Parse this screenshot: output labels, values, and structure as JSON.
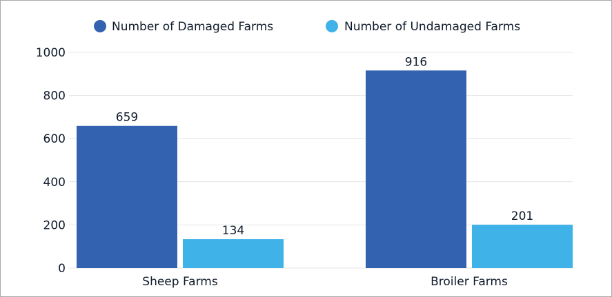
{
  "chart_data": {
    "type": "bar",
    "categories": [
      "Sheep Farms",
      "Broiler Farms"
    ],
    "series": [
      {
        "name": "Number of Damaged Farms",
        "values": [
          659,
          916
        ],
        "color": "#3363b0"
      },
      {
        "name": "Number of Undamaged Farms",
        "values": [
          134,
          201
        ],
        "color": "#3fb3e8"
      }
    ],
    "ylim": [
      0,
      1000
    ],
    "yticks": [
      0,
      200,
      400,
      600,
      800,
      1000
    ],
    "ytick_labels": [
      "0",
      "200",
      "400",
      "600",
      "800",
      "1000"
    ],
    "title": "",
    "xlabel": "",
    "ylabel": "",
    "grid": true,
    "legend_position": "top"
  }
}
